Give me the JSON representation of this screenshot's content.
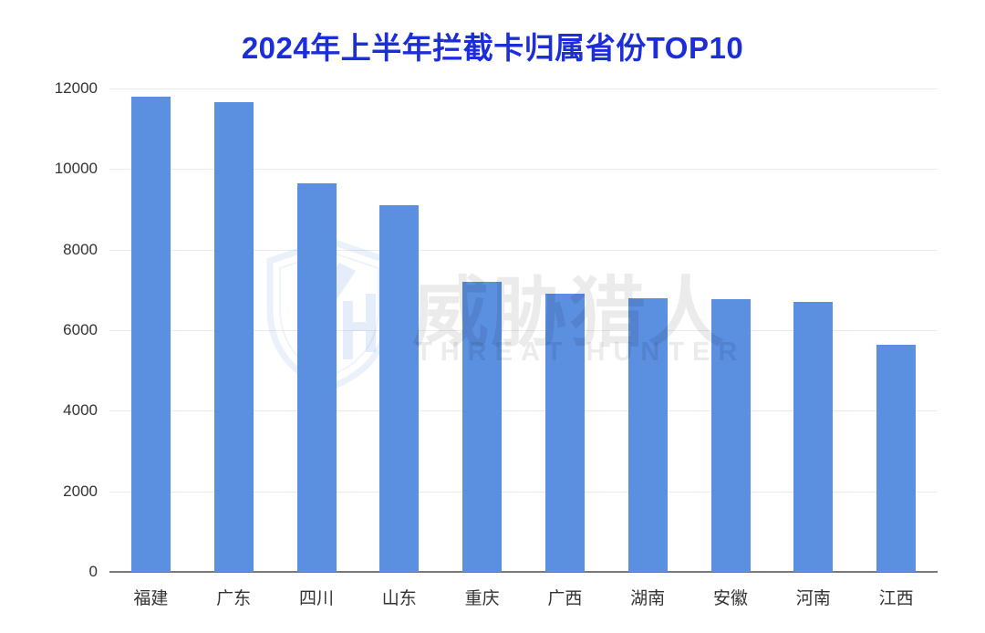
{
  "chart_data": {
    "type": "bar",
    "title": "2024年上半年拦截卡归属省份TOP10",
    "title_color": "#1C2ED9",
    "categories": [
      "福建",
      "广东",
      "四川",
      "山东",
      "重庆",
      "广西",
      "湖南",
      "安徽",
      "河南",
      "江西"
    ],
    "values": [
      11800,
      11650,
      9650,
      9100,
      7200,
      6900,
      6800,
      6760,
      6700,
      5640
    ],
    "y_ticks": [
      0,
      2000,
      4000,
      6000,
      8000,
      10000,
      12000
    ],
    "ylim": [
      0,
      12000
    ],
    "xlabel": "",
    "ylabel": "",
    "grid": true,
    "legend": "none",
    "bar_color": "#5B8FE0",
    "gridline_color": "#EBEBEB",
    "axis_line_color": "#7A7A7A",
    "tick_label_color": "#333333"
  },
  "watermark": {
    "logo": "threat-hunter-shield-logo",
    "cn_text": "威胁猎人",
    "en_text": "THREAT HUNTER",
    "logo_color": "#5B8FE0",
    "text_color": "rgba(0,0,0,0.08)"
  }
}
